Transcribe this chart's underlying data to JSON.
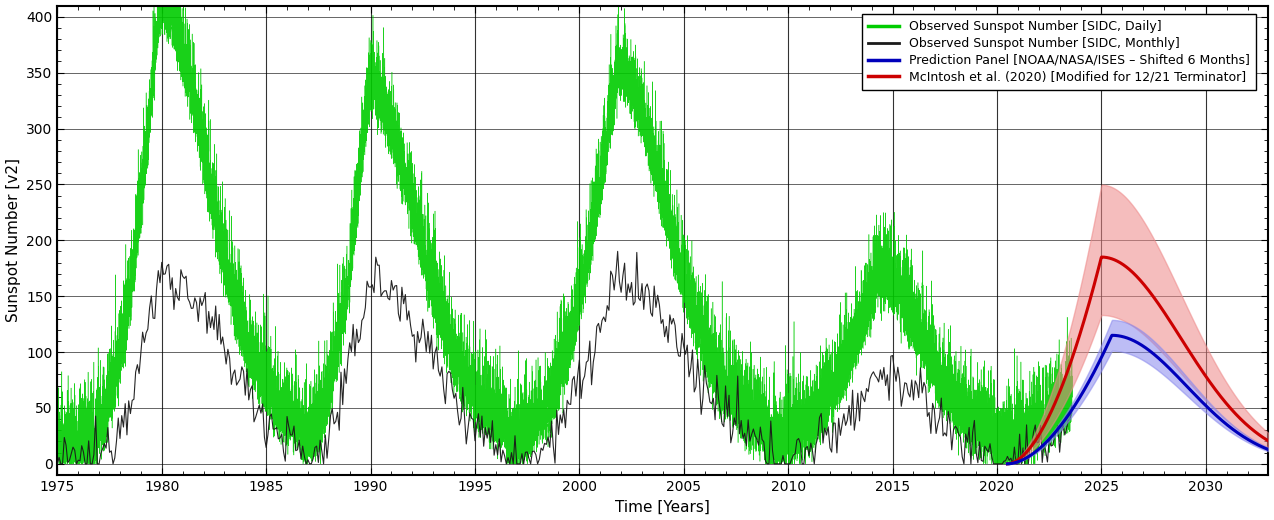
{
  "title": "",
  "xlabel": "Time [Years]",
  "ylabel": "Sunspot Number [v2]",
  "xlim": [
    1975,
    2033
  ],
  "ylim": [
    -10,
    410
  ],
  "yticks": [
    0,
    50,
    100,
    150,
    200,
    250,
    300,
    350,
    400
  ],
  "xticks": [
    1975,
    1980,
    1985,
    1990,
    1995,
    2000,
    2005,
    2010,
    2015,
    2020,
    2025,
    2030
  ],
  "background_color": "#ffffff",
  "daily_color": "#00cc00",
  "monthly_color": "#1a1a1a",
  "blue_pred_color": "#0000bb",
  "blue_pred_fill": "#8888ee",
  "red_pred_color": "#cc0000",
  "red_pred_fill": "#ee8888",
  "legend_labels": [
    "Observed Sunspot Number [SIDC, Daily]",
    "Observed Sunspot Number [SIDC, Monthly]",
    "Prediction Panel [NOAA/NASA/ISES – Shifted 6 Months]",
    "McIntosh et al. (2020) [Modified for 12/21 Terminator]"
  ],
  "cycle21": {
    "t_start": 1976.3,
    "t_peak": 1979.9,
    "t_end": 1986.7,
    "peak_monthly": 170,
    "peak_daily_scale": 2.3
  },
  "cycle22": {
    "t_start": 1986.7,
    "t_peak": 1989.9,
    "t_end": 1996.5,
    "peak_monthly": 165,
    "peak_daily_scale": 1.9
  },
  "cycle23": {
    "t_start": 1996.5,
    "t_peak": 2001.8,
    "t_end": 2008.9,
    "peak_monthly": 165,
    "peak_daily_scale": 2.0
  },
  "cycle24": {
    "t_start": 2008.9,
    "t_peak": 2014.3,
    "t_end": 2019.8,
    "peak_monthly": 82,
    "peak_daily_scale": 1.8
  },
  "cycle25_partial": {
    "t_start": 2019.8,
    "t_peak": 2025.5,
    "t_end": 2033.0,
    "peak_monthly": 90,
    "peak_daily_scale": 1.5
  },
  "blue_pred": {
    "t_start": 2020.5,
    "t_peak": 2025.5,
    "t_end": 2033.0,
    "peak": 115,
    "upper_scale": 1.12,
    "lower_scale": 0.88
  },
  "red_pred": {
    "t_start": 2020.5,
    "t_peak": 2025.0,
    "t_end": 2033.0,
    "peak": 185,
    "upper_scale": 1.35,
    "lower_scale": 0.72
  }
}
